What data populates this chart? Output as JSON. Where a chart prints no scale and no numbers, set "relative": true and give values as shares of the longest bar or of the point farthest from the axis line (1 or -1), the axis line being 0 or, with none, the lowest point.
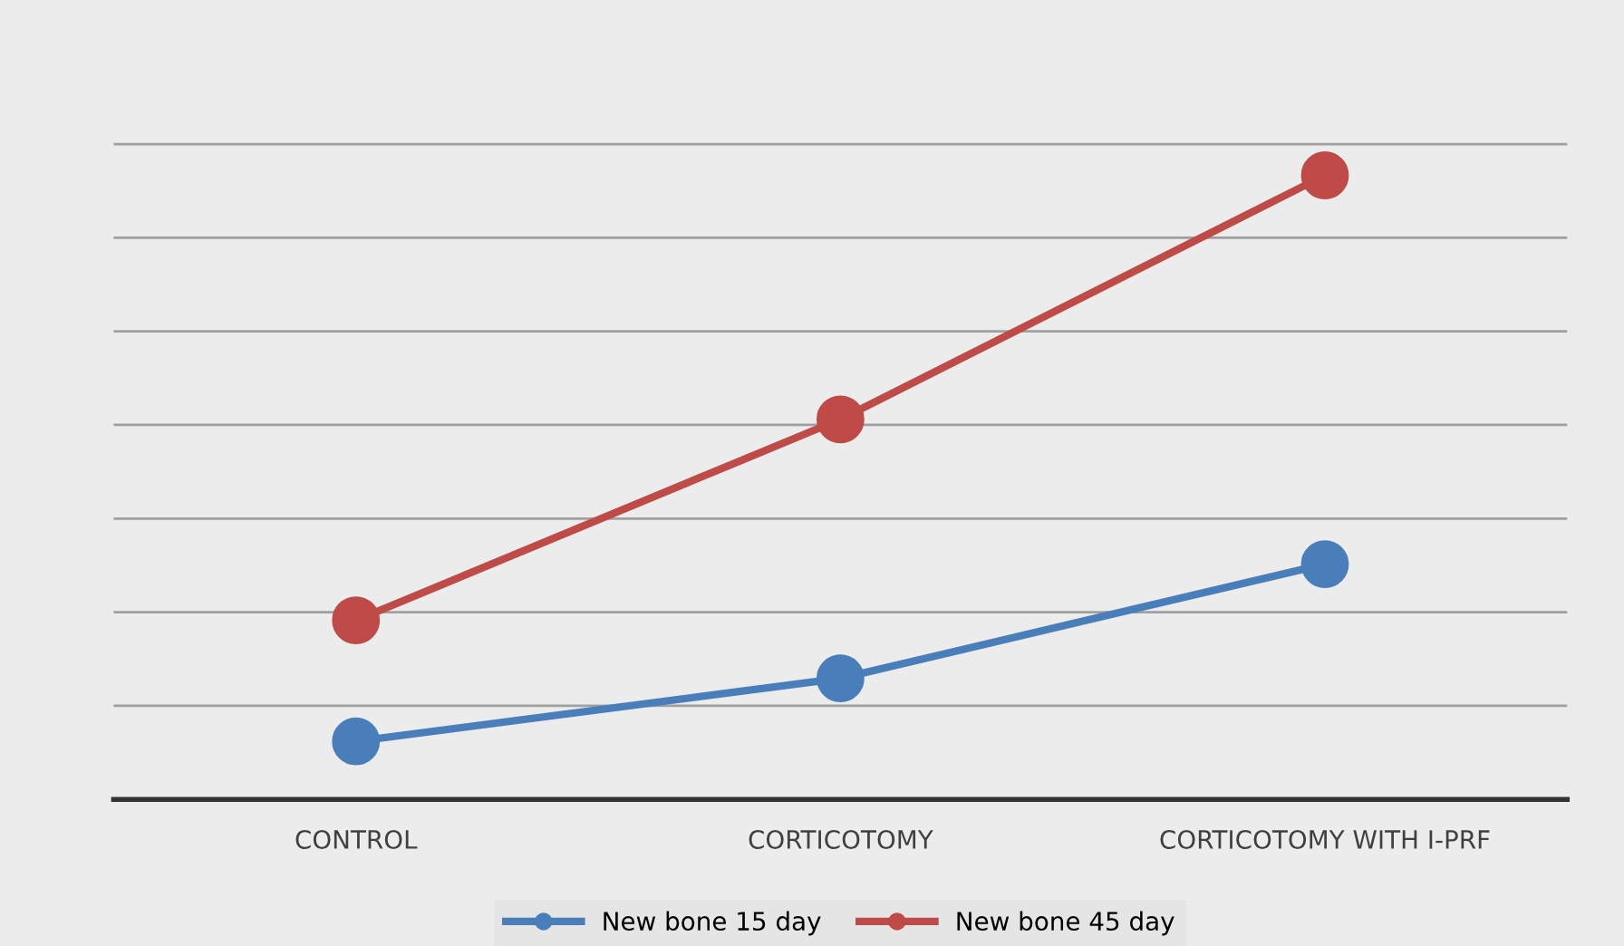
{
  "chart_data": {
    "type": "line",
    "relative": true,
    "categories": [
      "CONTROL",
      "CORTICOTOMY",
      "CORTICOTOMY WITH I-PRF"
    ],
    "series": [
      {
        "name": "New bone 15 day",
        "color": "#4a7ebb",
        "values": [
          0.093,
          0.194,
          0.377
        ]
      },
      {
        "name": "New bone 45 day",
        "color": "#be4b48",
        "values": [
          0.287,
          0.609,
          1
        ]
      }
    ],
    "marker": "circle",
    "line_style": "solid",
    "grid": "y",
    "legend": "bottom"
  }
}
